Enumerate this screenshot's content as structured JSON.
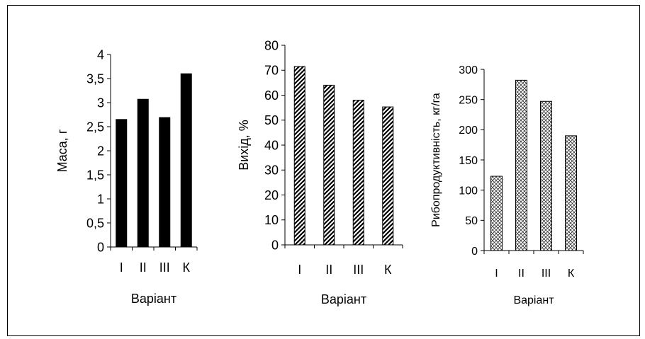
{
  "chart_data": [
    {
      "type": "bar",
      "categories": [
        "І",
        "ІІ",
        "ІІІ",
        "К"
      ],
      "values": [
        2.65,
        3.07,
        2.69,
        3.6
      ],
      "xlabel": "Варіант",
      "ylabel": "Маса, г",
      "ylim": [
        0,
        4
      ],
      "yticks": [
        "0",
        "0,5",
        "1",
        "1,5",
        "2",
        "2,5",
        "3",
        "3,5",
        "4"
      ],
      "fill": "solid-black",
      "grid": false
    },
    {
      "type": "bar",
      "categories": [
        "І",
        "ІІ",
        "ІІІ",
        "К"
      ],
      "values": [
        71.5,
        64,
        58,
        55.3
      ],
      "xlabel": "Варіант",
      "ylabel": "Вихід, %",
      "ylim": [
        0,
        80
      ],
      "yticks": [
        "0",
        "10",
        "20",
        "30",
        "40",
        "50",
        "60",
        "70",
        "80"
      ],
      "fill": "diagonal-hatch",
      "grid": false
    },
    {
      "type": "bar",
      "categories": [
        "І",
        "ІІ",
        "ІІІ",
        "К"
      ],
      "values": [
        123,
        282,
        247,
        190
      ],
      "xlabel": "Варіант",
      "ylabel": "Рибопродуктивність, кг/га",
      "ylim": [
        0,
        300
      ],
      "yticks": [
        "0",
        "50",
        "100",
        "150",
        "200",
        "250",
        "300"
      ],
      "fill": "crosshatch",
      "grid": false
    }
  ]
}
